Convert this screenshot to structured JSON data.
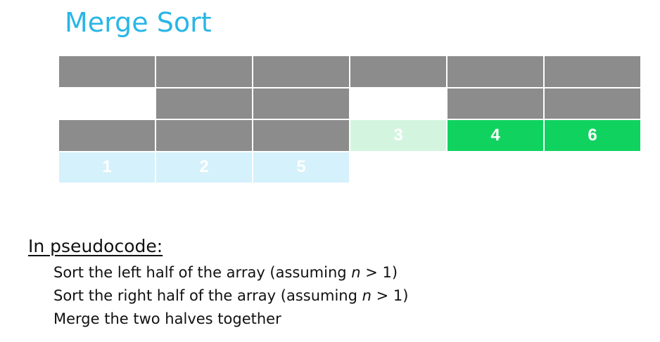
{
  "title": "Merge Sort",
  "colors": {
    "gray": "#8c8c8c",
    "light_green": "#d3f5e0",
    "green": "#10d35f",
    "light_blue": "#d5f1fb",
    "title_blue": "#29b6e6"
  },
  "grid": {
    "rows": [
      [
        {
          "value": "",
          "fill": "gray"
        },
        {
          "value": "",
          "fill": "gray"
        },
        {
          "value": "",
          "fill": "gray"
        },
        {
          "value": "",
          "fill": "gray"
        },
        {
          "value": "",
          "fill": "gray"
        },
        {
          "value": "",
          "fill": "gray"
        }
      ],
      [
        {
          "value": "",
          "fill": "empty"
        },
        {
          "value": "",
          "fill": "gray"
        },
        {
          "value": "",
          "fill": "gray"
        },
        {
          "value": "",
          "fill": "empty"
        },
        {
          "value": "",
          "fill": "gray"
        },
        {
          "value": "",
          "fill": "gray"
        }
      ],
      [
        {
          "value": "",
          "fill": "gray"
        },
        {
          "value": "",
          "fill": "gray"
        },
        {
          "value": "",
          "fill": "gray"
        },
        {
          "value": "3",
          "fill": "light_green"
        },
        {
          "value": "4",
          "fill": "green"
        },
        {
          "value": "6",
          "fill": "green"
        }
      ],
      [
        {
          "value": "1",
          "fill": "light_blue"
        },
        {
          "value": "2",
          "fill": "light_blue"
        },
        {
          "value": "5",
          "fill": "light_blue"
        },
        {
          "value": "",
          "fill": "empty"
        },
        {
          "value": "",
          "fill": "empty"
        },
        {
          "value": "",
          "fill": "empty"
        }
      ]
    ]
  },
  "pseudocode": {
    "heading": "In pseudocode:",
    "lines": [
      {
        "before": "Sort the left half of the array (assuming ",
        "var": "n",
        "after": " > 1)"
      },
      {
        "before": "Sort the right half of the array (assuming ",
        "var": "n",
        "after": " > 1)"
      },
      {
        "before": "Merge the two halves together",
        "var": "",
        "after": ""
      }
    ]
  }
}
